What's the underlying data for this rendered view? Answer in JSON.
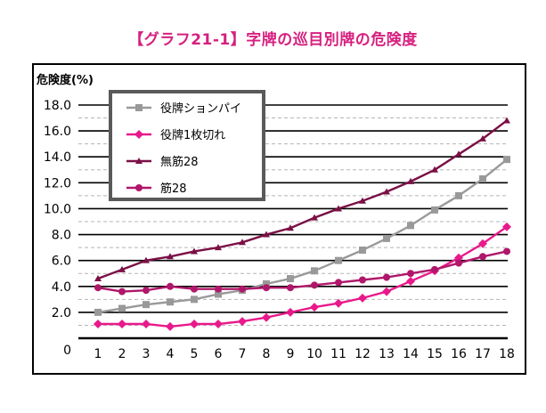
{
  "chart_data": {
    "type": "line",
    "title": "【グラフ21-1】字牌の巡目別牌の危険度",
    "ylabel": "危険度(%)",
    "xlabel": "",
    "x": [
      1,
      2,
      3,
      4,
      5,
      6,
      7,
      8,
      9,
      10,
      11,
      12,
      13,
      14,
      15,
      16,
      17,
      18
    ],
    "ylim": [
      0,
      18
    ],
    "y_ticks": [
      "18.0",
      "16.0",
      "14.0",
      "12.0",
      "10.0",
      "8.0",
      "6.0",
      "4.0",
      "2.0",
      "0"
    ],
    "grid": true,
    "legend_position": "top-left",
    "series": [
      {
        "name": "役牌ションパイ",
        "color": "#999999",
        "marker": "square",
        "values": [
          2.0,
          2.3,
          2.6,
          2.8,
          3.0,
          3.4,
          3.7,
          4.2,
          4.6,
          5.2,
          6.0,
          6.8,
          7.7,
          8.7,
          9.9,
          11.0,
          12.3,
          13.8
        ]
      },
      {
        "name": "役牌1枚切れ",
        "color": "#e8198b",
        "marker": "diamond",
        "values": [
          1.1,
          1.1,
          1.1,
          0.9,
          1.1,
          1.1,
          1.3,
          1.6,
          2.0,
          2.4,
          2.7,
          3.1,
          3.6,
          4.4,
          5.2,
          6.2,
          7.3,
          8.6
        ]
      },
      {
        "name": "無筋28",
        "color": "#7a1045",
        "marker": "triangle",
        "values": [
          4.6,
          5.3,
          6.0,
          6.3,
          6.7,
          7.0,
          7.4,
          8.0,
          8.5,
          9.3,
          10.0,
          10.6,
          11.3,
          12.1,
          13.0,
          14.2,
          15.4,
          16.8
        ]
      },
      {
        "name": "筋28",
        "color": "#b0176a",
        "marker": "circle",
        "values": [
          3.9,
          3.6,
          3.7,
          4.0,
          3.8,
          3.8,
          3.8,
          3.9,
          3.9,
          4.1,
          4.3,
          4.5,
          4.7,
          5.0,
          5.3,
          5.8,
          6.3,
          6.7
        ]
      }
    ]
  }
}
